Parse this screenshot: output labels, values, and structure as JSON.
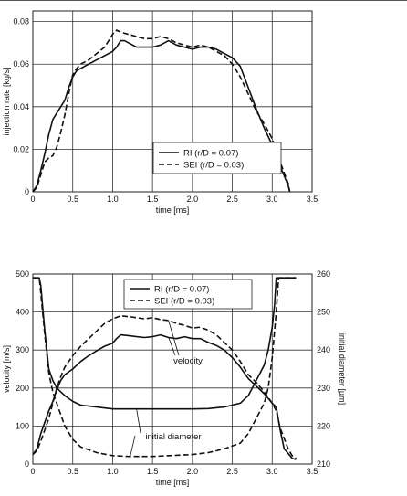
{
  "chart_data": [
    {
      "type": "line",
      "xlabel": "time [ms]",
      "ylabel": "injection rate [kg/s]",
      "xlim": [
        0,
        3.5
      ],
      "ylim": [
        0,
        0.085
      ],
      "x_ticks": [
        "0",
        "0.5",
        "1.0",
        "1.5",
        "2.0",
        "2.5",
        "3.0",
        "3.5"
      ],
      "y_ticks": [
        "0",
        "0.02",
        "0.04",
        "0.06",
        "0.08"
      ],
      "grid": true,
      "legend_position": "lower-center",
      "series": [
        {
          "name": "RI (r/D = 0.07)",
          "style": "solid",
          "points": [
            [
              0,
              0
            ],
            [
              0.05,
              0.003
            ],
            [
              0.1,
              0.01
            ],
            [
              0.15,
              0.018
            ],
            [
              0.2,
              0.027
            ],
            [
              0.25,
              0.034
            ],
            [
              0.3,
              0.037
            ],
            [
              0.35,
              0.04
            ],
            [
              0.4,
              0.043
            ],
            [
              0.45,
              0.049
            ],
            [
              0.5,
              0.054
            ],
            [
              0.55,
              0.057
            ],
            [
              0.6,
              0.058
            ],
            [
              0.65,
              0.059
            ],
            [
              0.7,
              0.06
            ],
            [
              0.8,
              0.062
            ],
            [
              0.9,
              0.064
            ],
            [
              1.0,
              0.066
            ],
            [
              1.05,
              0.068
            ],
            [
              1.1,
              0.071
            ],
            [
              1.15,
              0.071
            ],
            [
              1.2,
              0.07
            ],
            [
              1.3,
              0.068
            ],
            [
              1.4,
              0.068
            ],
            [
              1.5,
              0.068
            ],
            [
              1.6,
              0.069
            ],
            [
              1.7,
              0.071
            ],
            [
              1.75,
              0.07
            ],
            [
              1.8,
              0.069
            ],
            [
              1.9,
              0.068
            ],
            [
              2.0,
              0.067
            ],
            [
              2.1,
              0.068
            ],
            [
              2.2,
              0.068
            ],
            [
              2.3,
              0.067
            ],
            [
              2.4,
              0.065
            ],
            [
              2.5,
              0.063
            ],
            [
              2.6,
              0.059
            ],
            [
              2.7,
              0.049
            ],
            [
              2.8,
              0.039
            ],
            [
              2.9,
              0.03
            ],
            [
              3.0,
              0.022
            ],
            [
              3.1,
              0.012
            ],
            [
              3.2,
              0.003
            ],
            [
              3.22,
              0
            ]
          ]
        },
        {
          "name": "SEI (r/D = 0.03)",
          "style": "dashed",
          "points": [
            [
              0,
              0
            ],
            [
              0.05,
              0.002
            ],
            [
              0.1,
              0.008
            ],
            [
              0.15,
              0.014
            ],
            [
              0.2,
              0.016
            ],
            [
              0.25,
              0.017
            ],
            [
              0.3,
              0.021
            ],
            [
              0.35,
              0.028
            ],
            [
              0.4,
              0.036
            ],
            [
              0.45,
              0.046
            ],
            [
              0.5,
              0.055
            ],
            [
              0.55,
              0.058
            ],
            [
              0.6,
              0.06
            ],
            [
              0.7,
              0.062
            ],
            [
              0.8,
              0.065
            ],
            [
              0.9,
              0.068
            ],
            [
              0.95,
              0.071
            ],
            [
              1.0,
              0.074
            ],
            [
              1.05,
              0.076
            ],
            [
              1.1,
              0.075
            ],
            [
              1.2,
              0.074
            ],
            [
              1.3,
              0.073
            ],
            [
              1.4,
              0.072
            ],
            [
              1.5,
              0.072
            ],
            [
              1.6,
              0.073
            ],
            [
              1.7,
              0.072
            ],
            [
              1.8,
              0.07
            ],
            [
              1.9,
              0.069
            ],
            [
              2.0,
              0.068
            ],
            [
              2.1,
              0.069
            ],
            [
              2.2,
              0.068
            ],
            [
              2.3,
              0.066
            ],
            [
              2.4,
              0.064
            ],
            [
              2.5,
              0.06
            ],
            [
              2.6,
              0.054
            ],
            [
              2.7,
              0.046
            ],
            [
              2.8,
              0.038
            ],
            [
              2.9,
              0.032
            ],
            [
              3.0,
              0.025
            ],
            [
              3.1,
              0.014
            ],
            [
              3.2,
              0.004
            ],
            [
              3.22,
              0
            ]
          ]
        }
      ]
    },
    {
      "type": "line",
      "xlabel": "time [ms]",
      "ylabel": "velocity [m/s]",
      "y2label": "initial diameter [µm]",
      "xlim": [
        0,
        3.5
      ],
      "ylim": [
        0,
        500
      ],
      "y2lim": [
        210,
        260
      ],
      "x_ticks": [
        "0",
        "0.5",
        "1.0",
        "1.5",
        "2.0",
        "2.5",
        "3.0",
        "3.5"
      ],
      "y_ticks": [
        "0",
        "100",
        "200",
        "300",
        "400",
        "500"
      ],
      "y2_ticks": [
        "210",
        "220",
        "230",
        "240",
        "250",
        "260"
      ],
      "grid": true,
      "legend_position": "top-center",
      "legend": [
        "RI (r/D = 0.07)",
        "SEI (r/D = 0.03)"
      ],
      "annotations": [
        "velocity",
        "initial diameter"
      ],
      "series": [
        {
          "name": "RI (r/D = 0.07)",
          "quantity": "velocity",
          "axis": "left",
          "style": "solid",
          "points": [
            [
              0,
              25
            ],
            [
              0.05,
              40
            ],
            [
              0.1,
              80
            ],
            [
              0.15,
              110
            ],
            [
              0.2,
              140
            ],
            [
              0.25,
              165
            ],
            [
              0.3,
              195
            ],
            [
              0.35,
              220
            ],
            [
              0.4,
              235
            ],
            [
              0.5,
              250
            ],
            [
              0.6,
              270
            ],
            [
              0.7,
              285
            ],
            [
              0.8,
              298
            ],
            [
              0.9,
              310
            ],
            [
              1.0,
              318
            ],
            [
              1.05,
              330
            ],
            [
              1.1,
              340
            ],
            [
              1.2,
              338
            ],
            [
              1.3,
              335
            ],
            [
              1.4,
              333
            ],
            [
              1.5,
              335
            ],
            [
              1.6,
              340
            ],
            [
              1.7,
              333
            ],
            [
              1.8,
              330
            ],
            [
              1.9,
              335
            ],
            [
              2.0,
              330
            ],
            [
              2.1,
              330
            ],
            [
              2.2,
              320
            ],
            [
              2.3,
              312
            ],
            [
              2.4,
              300
            ],
            [
              2.5,
              280
            ],
            [
              2.6,
              255
            ],
            [
              2.7,
              225
            ],
            [
              2.8,
              205
            ],
            [
              2.9,
              185
            ],
            [
              3.0,
              160
            ],
            [
              3.05,
              150
            ],
            [
              3.1,
              90
            ],
            [
              3.15,
              40
            ],
            [
              3.2,
              28
            ],
            [
              3.25,
              15
            ],
            [
              3.3,
              12
            ]
          ]
        },
        {
          "name": "SEI (r/D = 0.03)",
          "quantity": "velocity",
          "axis": "left",
          "style": "dashed",
          "points": [
            [
              0,
              25
            ],
            [
              0.05,
              35
            ],
            [
              0.1,
              60
            ],
            [
              0.15,
              90
            ],
            [
              0.2,
              120
            ],
            [
              0.25,
              160
            ],
            [
              0.3,
              200
            ],
            [
              0.35,
              230
            ],
            [
              0.4,
              255
            ],
            [
              0.5,
              285
            ],
            [
              0.6,
              310
            ],
            [
              0.7,
              330
            ],
            [
              0.8,
              350
            ],
            [
              0.9,
              370
            ],
            [
              1.0,
              382
            ],
            [
              1.1,
              390
            ],
            [
              1.2,
              388
            ],
            [
              1.3,
              385
            ],
            [
              1.4,
              382
            ],
            [
              1.5,
              385
            ],
            [
              1.6,
              380
            ],
            [
              1.7,
              378
            ],
            [
              1.8,
              370
            ],
            [
              1.9,
              365
            ],
            [
              2.0,
              358
            ],
            [
              2.1,
              360
            ],
            [
              2.2,
              352
            ],
            [
              2.3,
              340
            ],
            [
              2.4,
              320
            ],
            [
              2.5,
              300
            ],
            [
              2.6,
              270
            ],
            [
              2.7,
              235
            ],
            [
              2.8,
              215
            ],
            [
              2.9,
              190
            ],
            [
              3.0,
              160
            ],
            [
              3.05,
              140
            ],
            [
              3.1,
              95
            ],
            [
              3.2,
              40
            ],
            [
              3.25,
              22
            ],
            [
              3.3,
              15
            ]
          ]
        },
        {
          "name": "RI (r/D = 0.07)",
          "quantity": "initial diameter",
          "axis": "right",
          "style": "solid",
          "points": [
            [
              0,
              259
            ],
            [
              0.05,
              259
            ],
            [
              0.08,
              259
            ],
            [
              0.1,
              257
            ],
            [
              0.12,
              252
            ],
            [
              0.15,
              245
            ],
            [
              0.2,
              235
            ],
            [
              0.25,
              232
            ],
            [
              0.3,
              230
            ],
            [
              0.4,
              228
            ],
            [
              0.5,
              226.5
            ],
            [
              0.6,
              225.5
            ],
            [
              0.8,
              225
            ],
            [
              1.0,
              224.5
            ],
            [
              1.2,
              224.5
            ],
            [
              1.5,
              224.5
            ],
            [
              1.8,
              224.5
            ],
            [
              2.0,
              224.5
            ],
            [
              2.2,
              224.6
            ],
            [
              2.4,
              225
            ],
            [
              2.6,
              226
            ],
            [
              2.7,
              228
            ],
            [
              2.8,
              232
            ],
            [
              2.9,
              236
            ],
            [
              2.95,
              240
            ],
            [
              3.0,
              246
            ],
            [
              3.03,
              252
            ],
            [
              3.05,
              259
            ],
            [
              3.1,
              259
            ],
            [
              3.3,
              259
            ]
          ]
        },
        {
          "name": "SEI (r/D = 0.03)",
          "quantity": "initial diameter",
          "axis": "right",
          "style": "dashed",
          "points": [
            [
              0,
              259
            ],
            [
              0.08,
              259
            ],
            [
              0.1,
              255
            ],
            [
              0.15,
              244
            ],
            [
              0.2,
              234
            ],
            [
              0.25,
              229
            ],
            [
              0.3,
              226
            ],
            [
              0.4,
              220
            ],
            [
              0.5,
              216.5
            ],
            [
              0.6,
              214.5
            ],
            [
              0.8,
              213
            ],
            [
              1.0,
              212.2
            ],
            [
              1.2,
              212
            ],
            [
              1.5,
              212
            ],
            [
              1.8,
              212.3
            ],
            [
              2.0,
              212.5
            ],
            [
              2.2,
              213
            ],
            [
              2.4,
              214
            ],
            [
              2.6,
              215.5
            ],
            [
              2.7,
              218
            ],
            [
              2.8,
              222
            ],
            [
              2.9,
              226
            ],
            [
              2.95,
              230
            ],
            [
              3.0,
              238
            ],
            [
              3.05,
              250
            ],
            [
              3.08,
              259
            ],
            [
              3.1,
              259
            ],
            [
              3.3,
              259
            ]
          ]
        }
      ]
    }
  ]
}
